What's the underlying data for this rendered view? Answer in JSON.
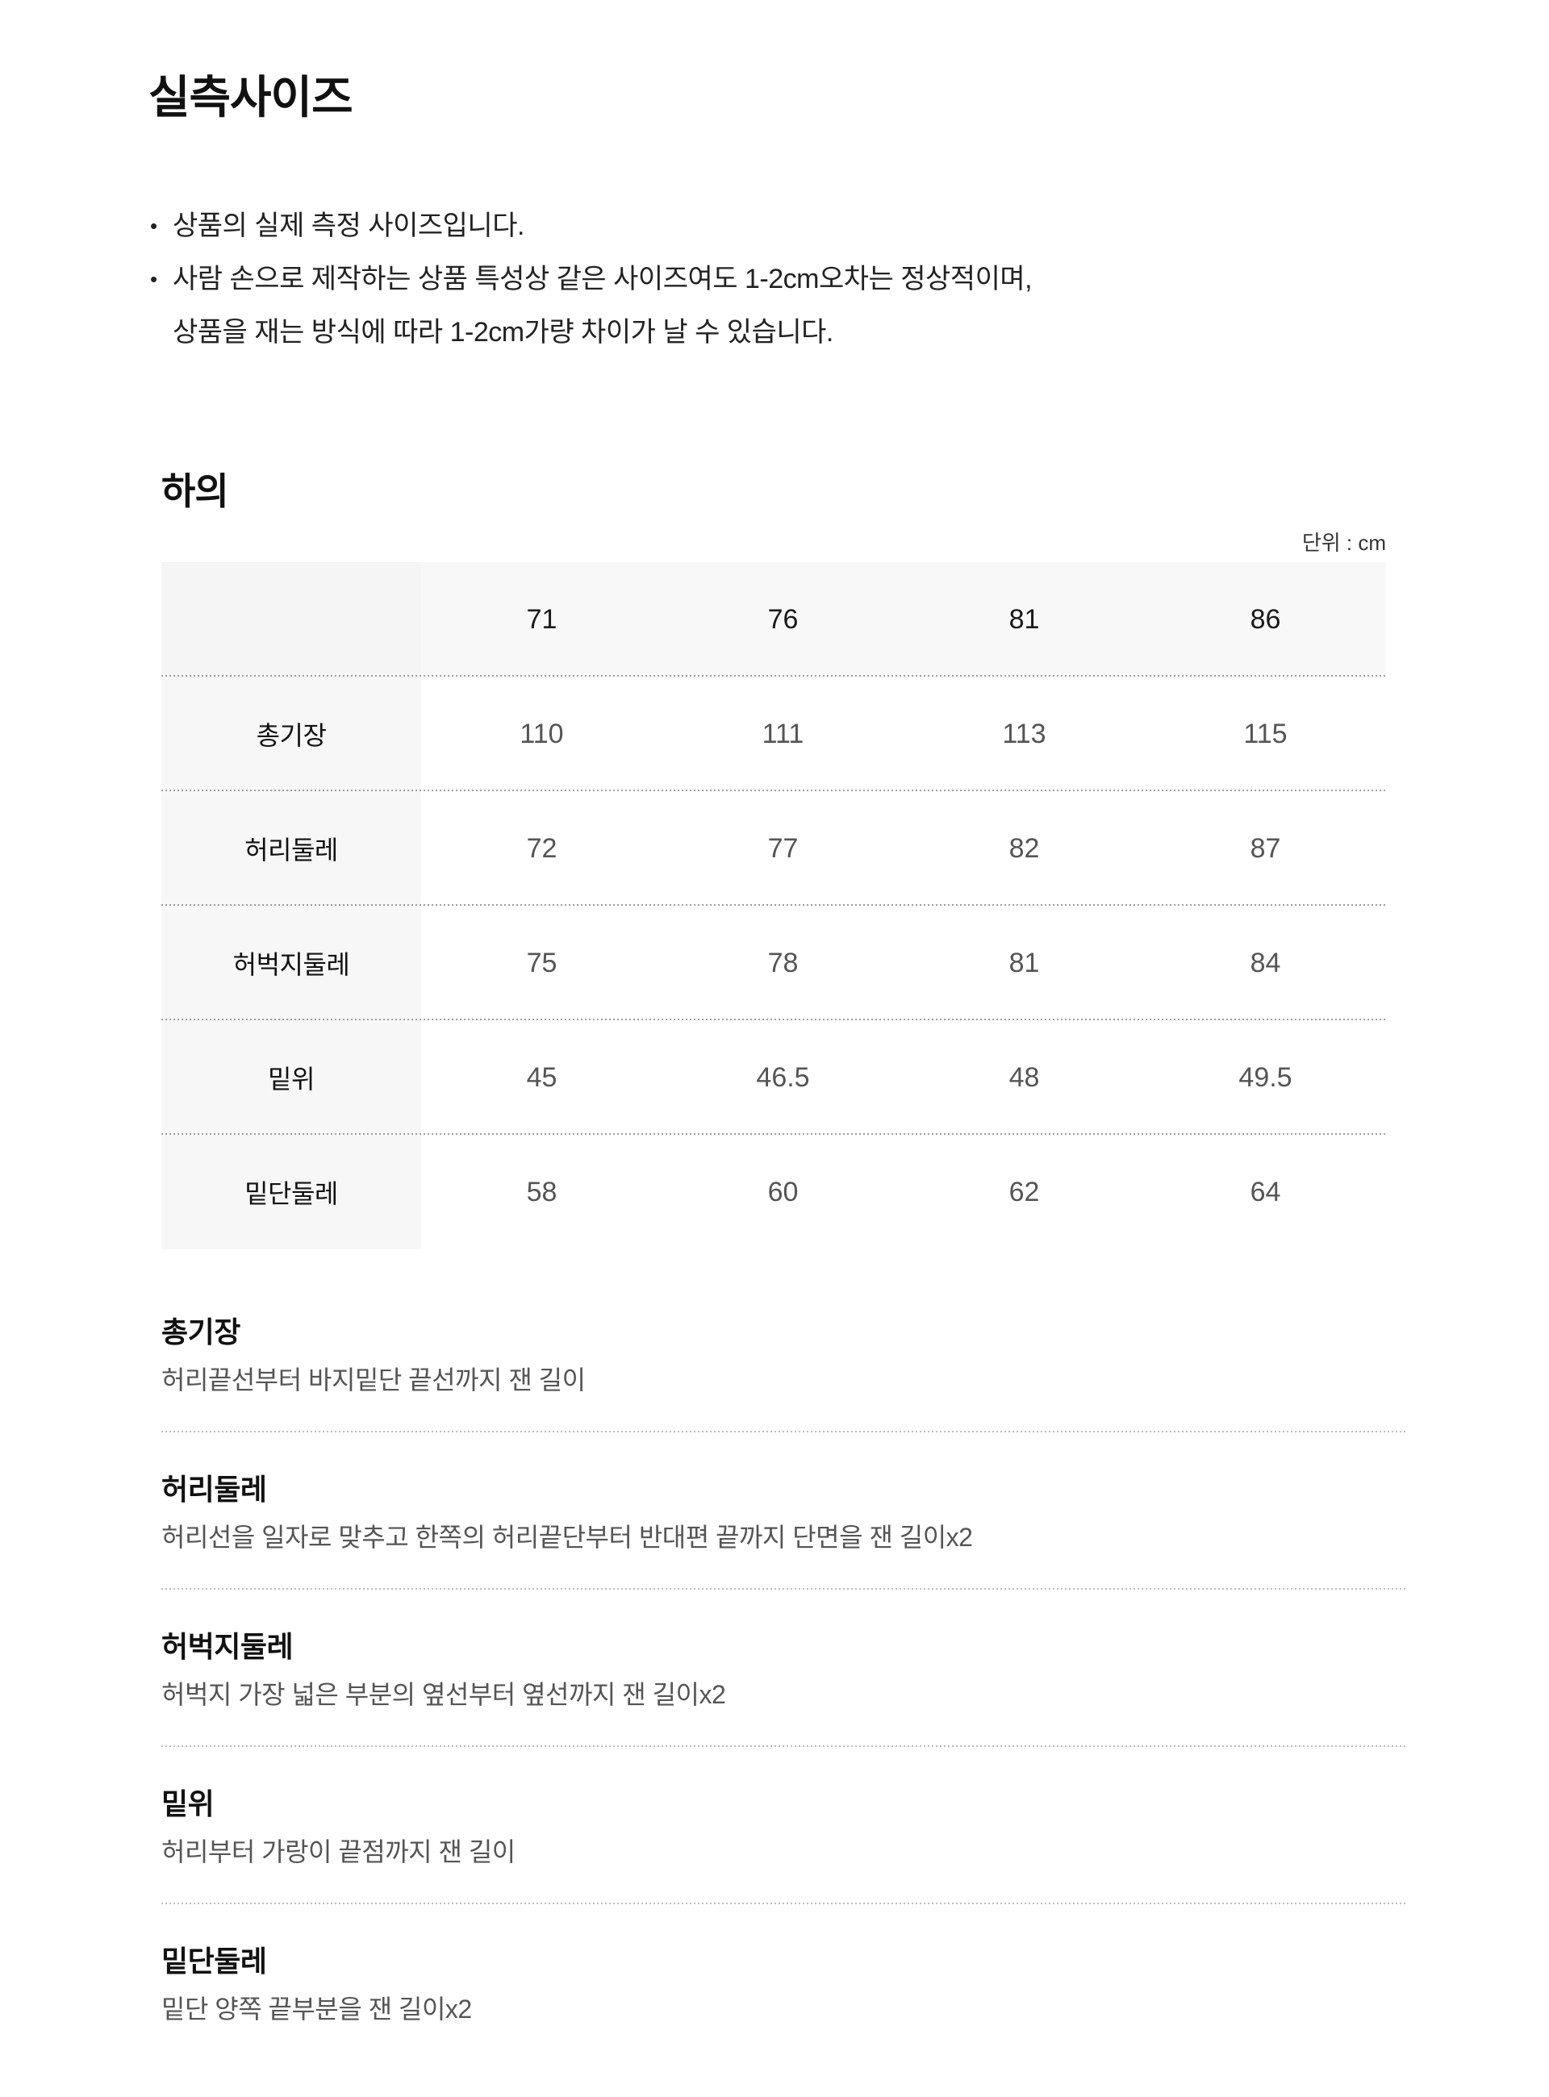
{
  "page": {
    "title": "실측사이즈"
  },
  "notes": {
    "bullet": "•",
    "items": [
      {
        "lines": [
          "상품의 실제 측정 사이즈입니다."
        ]
      },
      {
        "lines": [
          "사람 손으로 제작하는 상품 특성상 같은 사이즈여도 1-2cm오차는 정상적이며,",
          "상품을 재는 방식에 따라 1-2cm가량 차이가 날 수 있습니다."
        ]
      }
    ]
  },
  "section": {
    "heading": "하의",
    "unit_label": "단위 : cm"
  },
  "size_table": {
    "columns": [
      "71",
      "76",
      "81",
      "86"
    ],
    "rows": [
      {
        "label": "총기장",
        "values": [
          "110",
          "111",
          "113",
          "115"
        ]
      },
      {
        "label": "허리둘레",
        "values": [
          "72",
          "77",
          "82",
          "87"
        ]
      },
      {
        "label": "허벅지둘레",
        "values": [
          "75",
          "78",
          "81",
          "84"
        ]
      },
      {
        "label": "밑위",
        "values": [
          "45",
          "46.5",
          "48",
          "49.5"
        ]
      },
      {
        "label": "밑단둘레",
        "values": [
          "58",
          "60",
          "62",
          "64"
        ]
      }
    ]
  },
  "definitions": [
    {
      "term": "총기장",
      "description": "허리끝선부터 바지밑단 끝선까지 잰 길이"
    },
    {
      "term": "허리둘레",
      "description": "허리선을 일자로 맞추고 한쪽의 허리끝단부터 반대편 끝까지 단면을 잰 길이x2"
    },
    {
      "term": "허벅지둘레",
      "description": "허벅지 가장 넓은 부분의 옆선부터 옆선까지 잰 길이x2"
    },
    {
      "term": "밑위",
      "description": "허리부터 가랑이 끝점까지 잰 길이"
    },
    {
      "term": "밑단둘레",
      "description": "밑단 양쪽 끝부분을 잰 길이x2"
    }
  ],
  "colors": {
    "background": "#ffffff",
    "title_text": "#111111",
    "body_text": "#222222",
    "value_text": "#555555",
    "table_header_bg": "#f8f8f8",
    "table_label_bg": "#f7f7f7",
    "table_separator": "#9e9e9e",
    "definition_separator": "#bcbcbc"
  }
}
